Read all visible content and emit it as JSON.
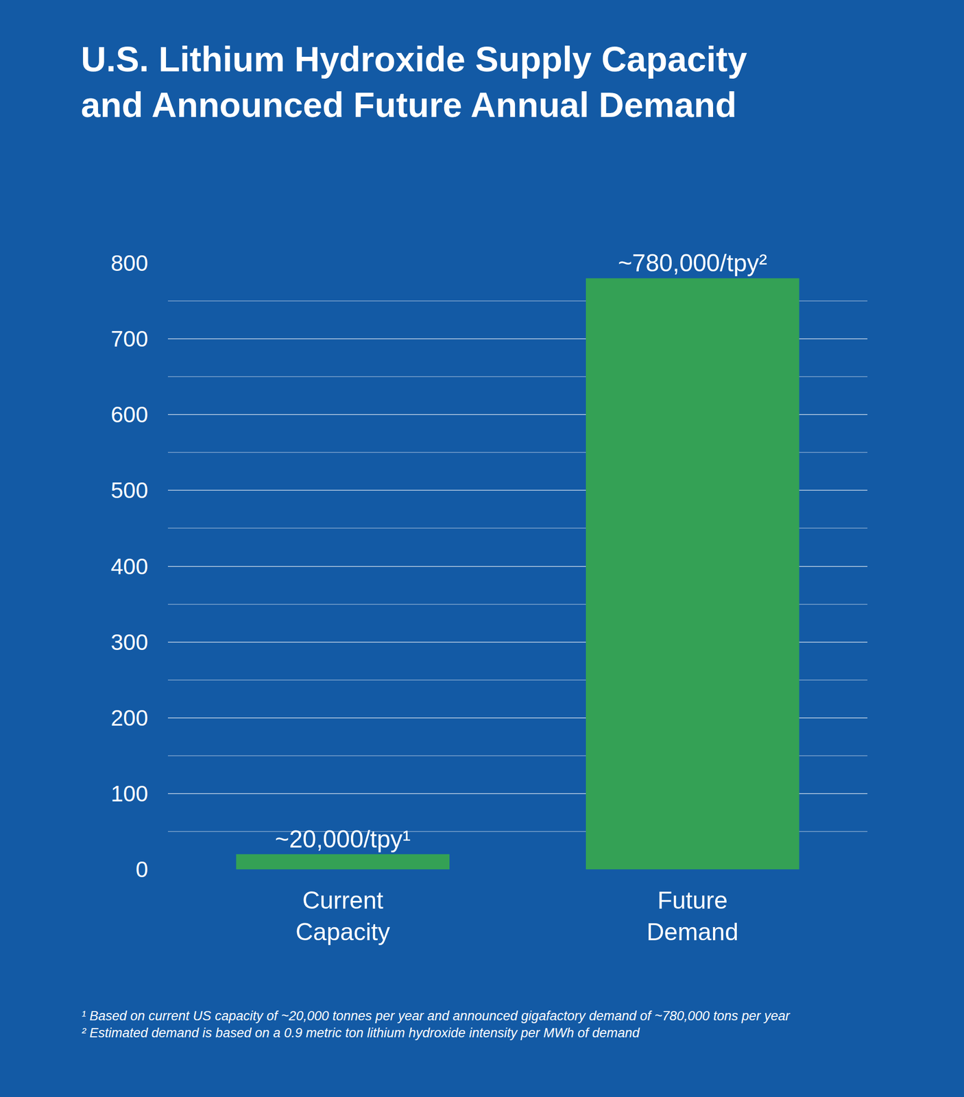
{
  "chart_data": {
    "type": "bar",
    "title": "U.S. Lithium Hydroxide Supply Capacity\nand Announced Future Annual Demand",
    "categories": [
      "Current Capacity",
      "Future Demand"
    ],
    "values": [
      20,
      780
    ],
    "value_labels": [
      "~20,000/tpy¹",
      "~780,000/tpy²"
    ],
    "data_labels": true,
    "color": "#34a155",
    "ylim": [
      0,
      800
    ],
    "yticks": [
      0,
      100,
      200,
      300,
      400,
      500,
      600,
      700,
      800
    ],
    "grid": true,
    "annotations": [
      "¹ Based on current US capacity of ~20,000 tonnes per year and announced gigafactory demand of ~780,000 tons per year",
      "² Estimated demand is based on a 0.9 metric ton lithium hydroxide intensity per MWh of demand"
    ]
  }
}
